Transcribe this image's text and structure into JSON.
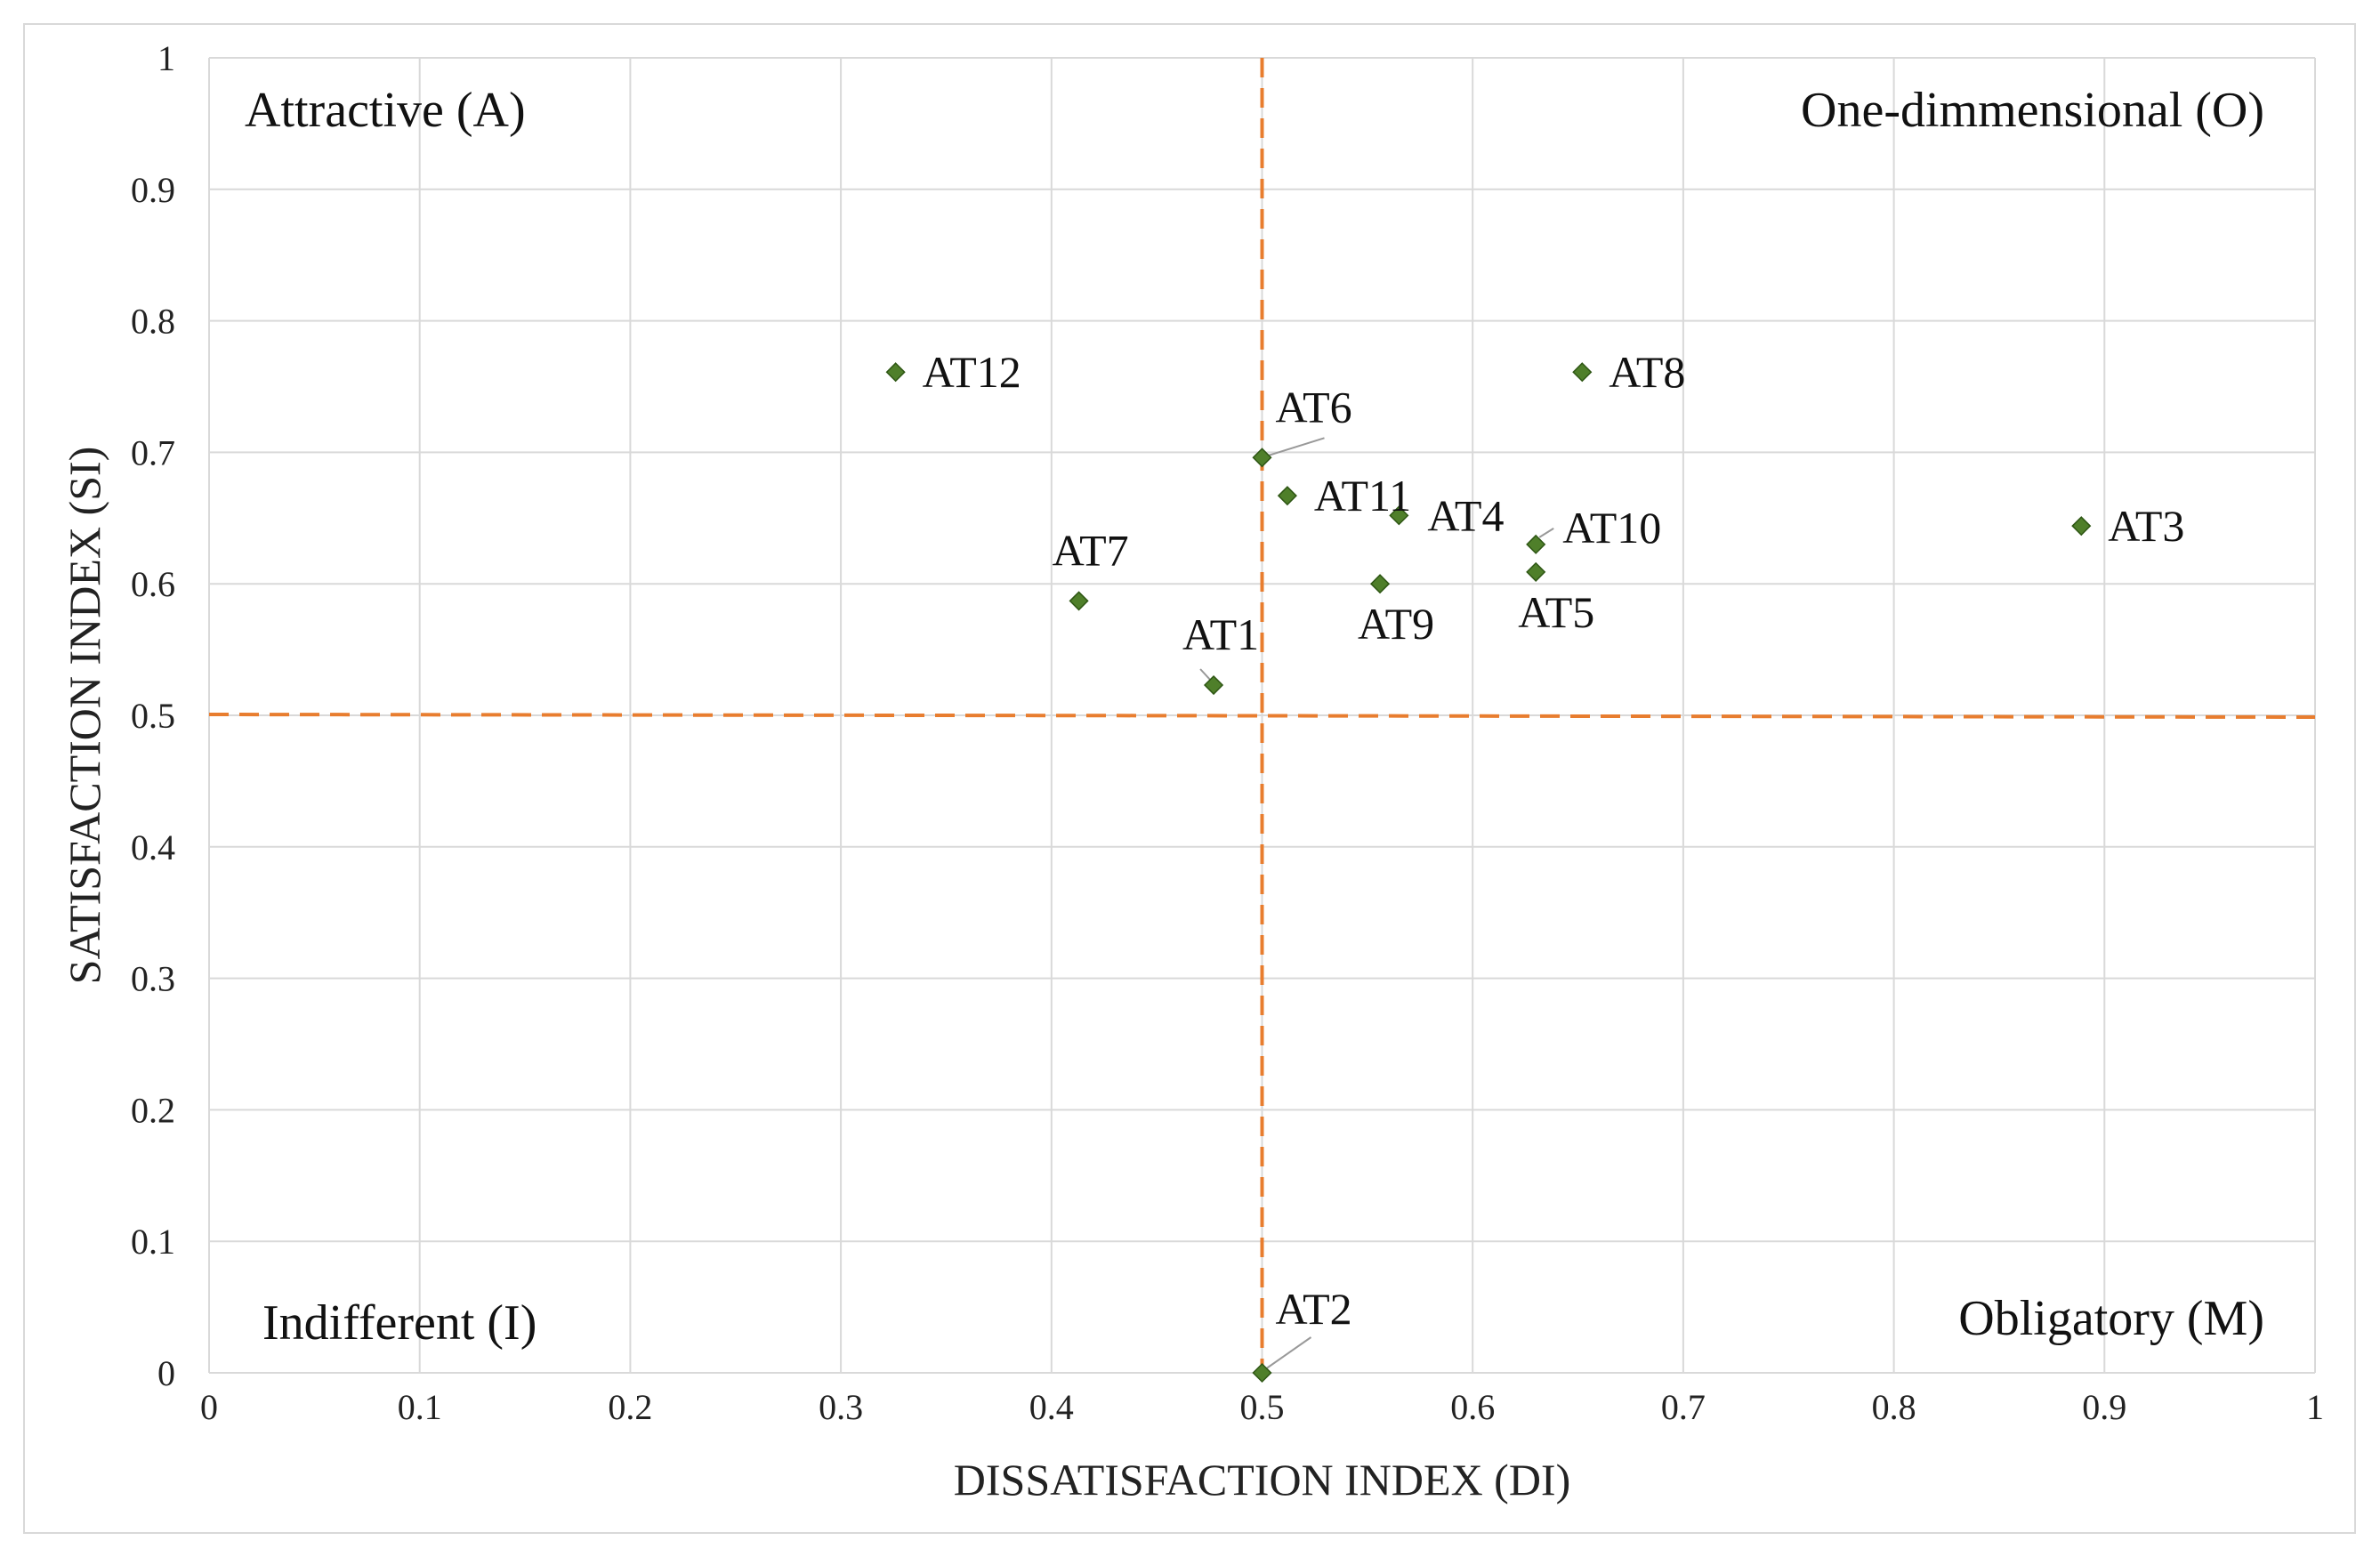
{
  "chart_data": {
    "type": "scatter",
    "title": "",
    "xlabel": "DISSATISFACTION INDEX (DI)",
    "ylabel": "SATISFACTION INDEX (SI)",
    "xlim": [
      0,
      1
    ],
    "ylim": [
      0,
      1
    ],
    "x_ticks": [
      "0",
      "0.1",
      "0.2",
      "0.3",
      "0.4",
      "0.5",
      "0.6",
      "0.7",
      "0.8",
      "0.9",
      "1"
    ],
    "y_ticks": [
      "0",
      "0.1",
      "0.2",
      "0.3",
      "0.4",
      "0.5",
      "0.6",
      "0.7",
      "0.8",
      "0.9",
      "1"
    ],
    "grid": true,
    "marker_color": "#4f7f2a",
    "reference_line_color": "#e87d2f",
    "reference_lines": {
      "x": 0.5,
      "y": 0.5
    },
    "quadrants": {
      "top_left": "Attractive (A)",
      "top_right": "One-dimmensional (O)",
      "bottom_left": "Indifferent (I)",
      "bottom_right": "Obligatory (M)"
    },
    "points": [
      {
        "label": "AT1",
        "x": 0.477,
        "y": 0.523
      },
      {
        "label": "AT2",
        "x": 0.5,
        "y": 0.0
      },
      {
        "label": "AT3",
        "x": 0.889,
        "y": 0.644
      },
      {
        "label": "AT4",
        "x": 0.565,
        "y": 0.652
      },
      {
        "label": "AT5",
        "x": 0.63,
        "y": 0.609
      },
      {
        "label": "AT6",
        "x": 0.5,
        "y": 0.696
      },
      {
        "label": "AT7",
        "x": 0.413,
        "y": 0.587
      },
      {
        "label": "AT8",
        "x": 0.652,
        "y": 0.761
      },
      {
        "label": "AT9",
        "x": 0.556,
        "y": 0.6
      },
      {
        "label": "AT10",
        "x": 0.63,
        "y": 0.63
      },
      {
        "label": "AT11",
        "x": 0.512,
        "y": 0.667
      },
      {
        "label": "AT12",
        "x": 0.326,
        "y": 0.761
      }
    ]
  }
}
